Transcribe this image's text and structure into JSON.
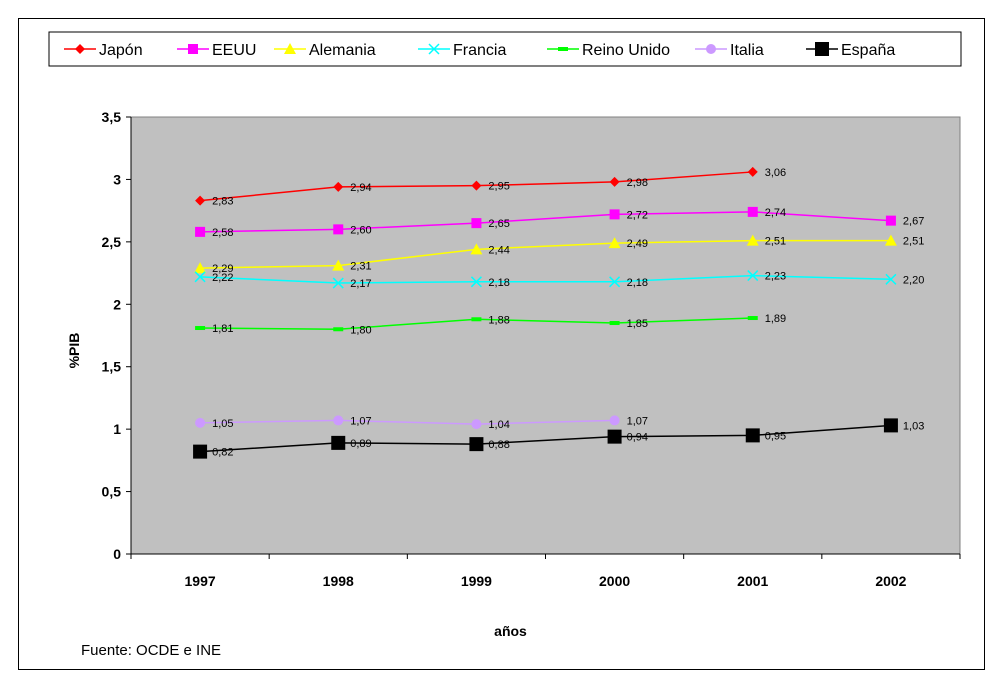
{
  "chart_data": {
    "type": "line",
    "categories": [
      "1997",
      "1998",
      "1999",
      "2000",
      "2001",
      "2002"
    ],
    "xlabel": "años",
    "ylabel": "%PIB",
    "ylim": [
      0,
      3.5
    ],
    "yticks": [
      "0",
      "0,5",
      "1",
      "1,5",
      "2",
      "2,5",
      "3",
      "3,5"
    ],
    "plot_background": "#c0c0c0",
    "grid": false,
    "legend_position": "top",
    "series": [
      {
        "name": "Japón",
        "color": "#ff0000",
        "marker": "diamond",
        "values": [
          2.83,
          2.94,
          2.95,
          2.98,
          3.06,
          null
        ],
        "labels": [
          "2,83",
          "2,94",
          "2,95",
          "2,98",
          "3,06",
          null
        ]
      },
      {
        "name": "EEUU",
        "color": "#ff00ff",
        "marker": "square",
        "values": [
          2.58,
          2.6,
          2.65,
          2.72,
          2.74,
          2.67
        ],
        "labels": [
          "2,58",
          "2,60",
          "2,65",
          "2,72",
          "2,74",
          "2,67"
        ]
      },
      {
        "name": "Alemania",
        "color": "#ffff00",
        "marker": "triangle",
        "values": [
          2.29,
          2.31,
          2.44,
          2.49,
          2.51,
          2.51
        ],
        "labels": [
          "2,29",
          "2,31",
          "2,44",
          "2,49",
          "2,51",
          "2,51"
        ]
      },
      {
        "name": "Francia",
        "color": "#00ffff",
        "marker": "x",
        "values": [
          2.22,
          2.17,
          2.18,
          2.18,
          2.23,
          2.2
        ],
        "labels": [
          "2,22",
          "2,17",
          "2,18",
          "2,18",
          "2,23",
          "2,20"
        ]
      },
      {
        "name": "Reino Unido",
        "color": "#00ff00",
        "marker": "dash",
        "values": [
          1.81,
          1.8,
          1.88,
          1.85,
          1.89,
          null
        ],
        "labels": [
          "1,81",
          "1,80",
          "1,88",
          "1,85",
          "1,89",
          null
        ]
      },
      {
        "name": "Italia",
        "color": "#cc99ff",
        "marker": "circle",
        "values": [
          1.05,
          1.07,
          1.04,
          1.07,
          null,
          null
        ],
        "labels": [
          "1,05",
          "1,07",
          "1,04",
          "1,07",
          null,
          null
        ]
      },
      {
        "name": "España",
        "color": "#000000",
        "marker": "bigsquare",
        "values": [
          0.82,
          0.89,
          0.88,
          0.94,
          0.95,
          1.03
        ],
        "labels": [
          "0,82",
          "0,89",
          "0,88",
          "0,94",
          "0,95",
          "1,03"
        ]
      }
    ]
  },
  "source_note": "Fuente: OCDE e INE"
}
